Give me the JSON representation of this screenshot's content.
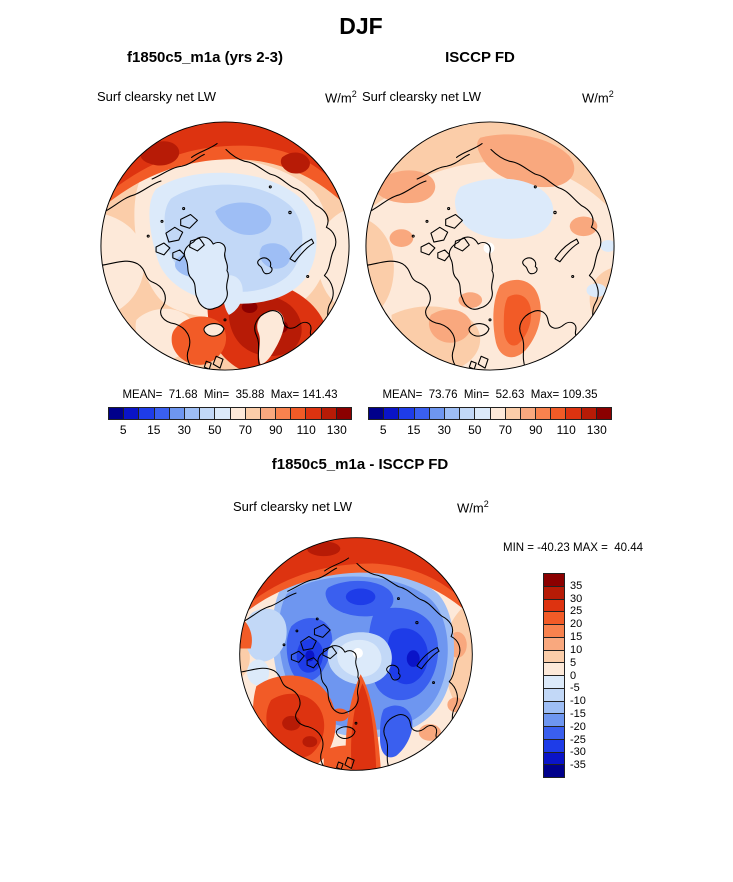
{
  "figure": {
    "season_title": "DJF"
  },
  "palette": [
    "#00008B",
    "#0A14C8",
    "#1E3CE8",
    "#3A5FEF",
    "#6E96F0",
    "#9EBEF5",
    "#C2D8F7",
    "#DCEAFA",
    "#FDE9D9",
    "#FBCDA9",
    "#F9A87E",
    "#F8824E",
    "#F25B27",
    "#DD3310",
    "#B71B06",
    "#8B0000"
  ],
  "panels": {
    "model": {
      "title": "f1850c5_m1a (yrs 2-3)",
      "field": "Surf clearsky net LW",
      "units_base": "W/m",
      "units_exp": "2",
      "stats_line": "MEAN=  71.68  Min=  35.88  Max= 141.43"
    },
    "obs": {
      "title": "ISCCP FD",
      "field": "Surf clearsky net LW",
      "units_base": "W/m",
      "units_exp": "2",
      "stats_line": "MEAN=  73.76  Min=  52.63  Max= 109.35"
    },
    "diff": {
      "title": "f1850c5_m1a - ISCCP FD",
      "field": "Surf clearsky net LW",
      "units_base": "W/m",
      "units_exp": "2",
      "stats_line": "MIN = -40.23 MAX =  40.44"
    }
  },
  "chart_data": [
    {
      "type": "heatmap",
      "projection": "north-polar-stereographic",
      "season": "DJF",
      "title": "f1850c5_m1a (yrs 2-3)",
      "variable": "Surf clearsky net LW",
      "units": "W/m^2",
      "stats": {
        "mean": 71.68,
        "min": 35.88,
        "max": 141.43
      },
      "colorbar": {
        "orientation": "horizontal",
        "levels": [
          5,
          10,
          15,
          20,
          30,
          40,
          50,
          60,
          70,
          80,
          90,
          100,
          110,
          120,
          130
        ],
        "tick_labels": [
          "5",
          "15",
          "30",
          "50",
          "70",
          "90",
          "110",
          "130"
        ],
        "colors": [
          "#00008B",
          "#0A14C8",
          "#1E3CE8",
          "#3A5FEF",
          "#6E96F0",
          "#9EBEF5",
          "#C2D8F7",
          "#DCEAFA",
          "#FDE9D9",
          "#FBCDA9",
          "#F9A87E",
          "#F8824E",
          "#F25B27",
          "#DD3310",
          "#B71B06",
          "#8B0000"
        ]
      },
      "pattern_summary": "Low values (light blue, ~40-70) over the central Arctic Ocean; high values (orange to dark red, ~90-140) over the Norwegian Sea / North Atlantic and along the North Pacific edge of the domain."
    },
    {
      "type": "heatmap",
      "projection": "north-polar-stereographic",
      "season": "DJF",
      "title": "ISCCP FD",
      "variable": "Surf clearsky net LW",
      "units": "W/m^2",
      "stats": {
        "mean": 73.76,
        "min": 52.63,
        "max": 109.35
      },
      "colorbar": {
        "orientation": "horizontal",
        "levels": [
          5,
          10,
          15,
          20,
          30,
          40,
          50,
          60,
          70,
          80,
          90,
          100,
          110,
          120,
          130
        ],
        "tick_labels": [
          "5",
          "15",
          "30",
          "50",
          "70",
          "90",
          "110",
          "130"
        ],
        "colors": [
          "#00008B",
          "#0A14C8",
          "#1E3CE8",
          "#3A5FEF",
          "#6E96F0",
          "#9EBEF5",
          "#C2D8F7",
          "#DCEAFA",
          "#FDE9D9",
          "#FBCDA9",
          "#F9A87E",
          "#F8824E",
          "#F25B27",
          "#DD3310",
          "#B71B06",
          "#8B0000"
        ]
      },
      "pattern_summary": "Mostly 60-90 (cream to salmon) everywhere; moderate maximum (~100-110, orange) along the Norwegian Sea; small pale-blue patch (~50-60) near the pole with a white data hole at the pole."
    },
    {
      "type": "heatmap",
      "projection": "north-polar-stereographic",
      "season": "DJF",
      "title": "f1850c5_m1a - ISCCP FD",
      "variable": "Surf clearsky net LW",
      "units": "W/m^2",
      "stats": {
        "min": -40.23,
        "max": 40.44
      },
      "colorbar": {
        "orientation": "vertical",
        "levels": [
          -35,
          -30,
          -25,
          -20,
          -15,
          -10,
          -5,
          0,
          5,
          10,
          15,
          20,
          25,
          30,
          35
        ],
        "tick_labels": [
          "35",
          "30",
          "25",
          "20",
          "15",
          "10",
          "5",
          "0",
          "-5",
          "-10",
          "-15",
          "-20",
          "-25",
          "-30",
          "-35"
        ],
        "colors": [
          "#00008B",
          "#0A14C8",
          "#1E3CE8",
          "#3A5FEF",
          "#6E96F0",
          "#9EBEF5",
          "#C2D8F7",
          "#DCEAFA",
          "#FDE9D9",
          "#FBCDA9",
          "#F9A87E",
          "#F8824E",
          "#F25B27",
          "#DD3310",
          "#B71B06",
          "#8B0000"
        ]
      },
      "pattern_summary": "Negative differences (blue, -10 to -30) over most of the Arctic Ocean and archipelago; positive differences (red, +15 to +35) over Siberia at the top, the North Atlantic at bottom left, and a tongue up the Norwegian Sea; white data hole at the pole."
    }
  ]
}
